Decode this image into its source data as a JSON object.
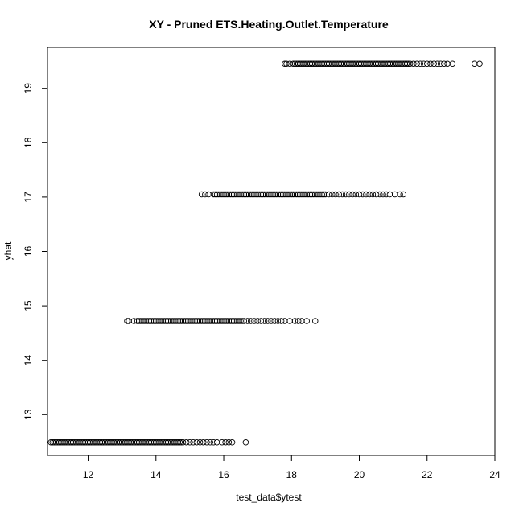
{
  "chart_data": {
    "type": "scatter",
    "title": "XY - Pruned ETS.Heating.Outlet.Temperature",
    "xlabel": "test_data$ytest",
    "ylabel": "yhat",
    "xlim": [
      10.8,
      24.0
    ],
    "ylim": [
      12.25,
      19.75
    ],
    "x_ticks": [
      12,
      14,
      16,
      18,
      20,
      22,
      24
    ],
    "y_ticks": [
      13,
      14,
      15,
      16,
      17,
      18,
      19
    ],
    "marker": "open-circle",
    "grid": false,
    "levels": [
      {
        "yhat": 12.49,
        "x": [
          10.9,
          10.95,
          11.0,
          11.05,
          11.1,
          11.15,
          11.2,
          11.25,
          11.3,
          11.35,
          11.4,
          11.45,
          11.5,
          11.55,
          11.6,
          11.65,
          11.7,
          11.75,
          11.8,
          11.85,
          11.9,
          11.95,
          12.0,
          12.05,
          12.1,
          12.15,
          12.2,
          12.25,
          12.3,
          12.35,
          12.4,
          12.45,
          12.5,
          12.55,
          12.6,
          12.65,
          12.7,
          12.75,
          12.8,
          12.85,
          12.9,
          12.95,
          13.0,
          13.05,
          13.1,
          13.15,
          13.2,
          13.25,
          13.3,
          13.35,
          13.4,
          13.45,
          13.5,
          13.55,
          13.6,
          13.65,
          13.7,
          13.75,
          13.8,
          13.85,
          13.9,
          13.95,
          14.0,
          14.05,
          14.1,
          14.15,
          14.2,
          14.25,
          14.3,
          14.35,
          14.4,
          14.45,
          14.5,
          14.55,
          14.6,
          14.65,
          14.7,
          14.75,
          14.8,
          14.9,
          15.0,
          15.1,
          15.2,
          15.3,
          15.4,
          15.5,
          15.6,
          15.7,
          15.8,
          15.95,
          16.05,
          16.15,
          16.25,
          16.65
        ]
      },
      {
        "yhat": 14.72,
        "x": [
          13.15,
          13.2,
          13.35,
          13.45,
          13.5,
          13.55,
          13.6,
          13.65,
          13.7,
          13.75,
          13.8,
          13.85,
          13.9,
          13.95,
          14.0,
          14.05,
          14.1,
          14.15,
          14.2,
          14.25,
          14.3,
          14.35,
          14.4,
          14.45,
          14.5,
          14.55,
          14.6,
          14.65,
          14.7,
          14.75,
          14.8,
          14.85,
          14.9,
          14.95,
          15.0,
          15.05,
          15.1,
          15.15,
          15.2,
          15.25,
          15.3,
          15.35,
          15.4,
          15.45,
          15.5,
          15.55,
          15.6,
          15.65,
          15.7,
          15.75,
          15.8,
          15.85,
          15.9,
          15.95,
          16.0,
          16.05,
          16.1,
          16.15,
          16.2,
          16.25,
          16.3,
          16.35,
          16.4,
          16.45,
          16.5,
          16.55,
          16.6,
          16.7,
          16.8,
          16.9,
          17.0,
          17.1,
          17.2,
          17.3,
          17.4,
          17.5,
          17.6,
          17.7,
          17.8,
          17.95,
          18.1,
          18.2,
          18.3,
          18.45,
          18.7
        ]
      },
      {
        "yhat": 17.05,
        "x": [
          15.35,
          15.45,
          15.55,
          15.7,
          15.75,
          15.8,
          15.85,
          15.9,
          15.95,
          16.0,
          16.05,
          16.1,
          16.15,
          16.2,
          16.25,
          16.3,
          16.35,
          16.4,
          16.45,
          16.5,
          16.55,
          16.6,
          16.65,
          16.7,
          16.75,
          16.8,
          16.85,
          16.9,
          16.95,
          17.0,
          17.05,
          17.1,
          17.15,
          17.2,
          17.25,
          17.3,
          17.35,
          17.4,
          17.45,
          17.5,
          17.55,
          17.6,
          17.65,
          17.7,
          17.75,
          17.8,
          17.85,
          17.9,
          17.95,
          18.0,
          18.05,
          18.1,
          18.15,
          18.2,
          18.25,
          18.3,
          18.35,
          18.4,
          18.45,
          18.5,
          18.55,
          18.6,
          18.65,
          18.7,
          18.75,
          18.8,
          18.85,
          18.9,
          18.95,
          19.0,
          19.1,
          19.2,
          19.3,
          19.4,
          19.5,
          19.6,
          19.7,
          19.8,
          19.9,
          20.0,
          20.1,
          20.2,
          20.3,
          20.4,
          20.5,
          20.6,
          20.7,
          20.8,
          20.9,
          21.05,
          21.2,
          21.3
        ]
      },
      {
        "yhat": 19.45,
        "x": [
          17.8,
          17.85,
          17.95,
          18.05,
          18.1,
          18.15,
          18.2,
          18.25,
          18.3,
          18.35,
          18.4,
          18.45,
          18.5,
          18.55,
          18.6,
          18.65,
          18.7,
          18.75,
          18.8,
          18.85,
          18.9,
          18.95,
          19.0,
          19.05,
          19.1,
          19.15,
          19.2,
          19.25,
          19.3,
          19.35,
          19.4,
          19.45,
          19.5,
          19.55,
          19.6,
          19.65,
          19.7,
          19.75,
          19.8,
          19.85,
          19.9,
          19.95,
          20.0,
          20.05,
          20.1,
          20.15,
          20.2,
          20.25,
          20.3,
          20.35,
          20.4,
          20.45,
          20.5,
          20.55,
          20.6,
          20.65,
          20.7,
          20.75,
          20.8,
          20.85,
          20.9,
          20.95,
          21.0,
          21.05,
          21.1,
          21.15,
          21.2,
          21.25,
          21.3,
          21.35,
          21.4,
          21.45,
          21.5,
          21.6,
          21.7,
          21.8,
          21.9,
          22.0,
          22.1,
          22.2,
          22.3,
          22.4,
          22.5,
          22.6,
          22.75,
          23.4,
          23.55
        ]
      }
    ]
  }
}
